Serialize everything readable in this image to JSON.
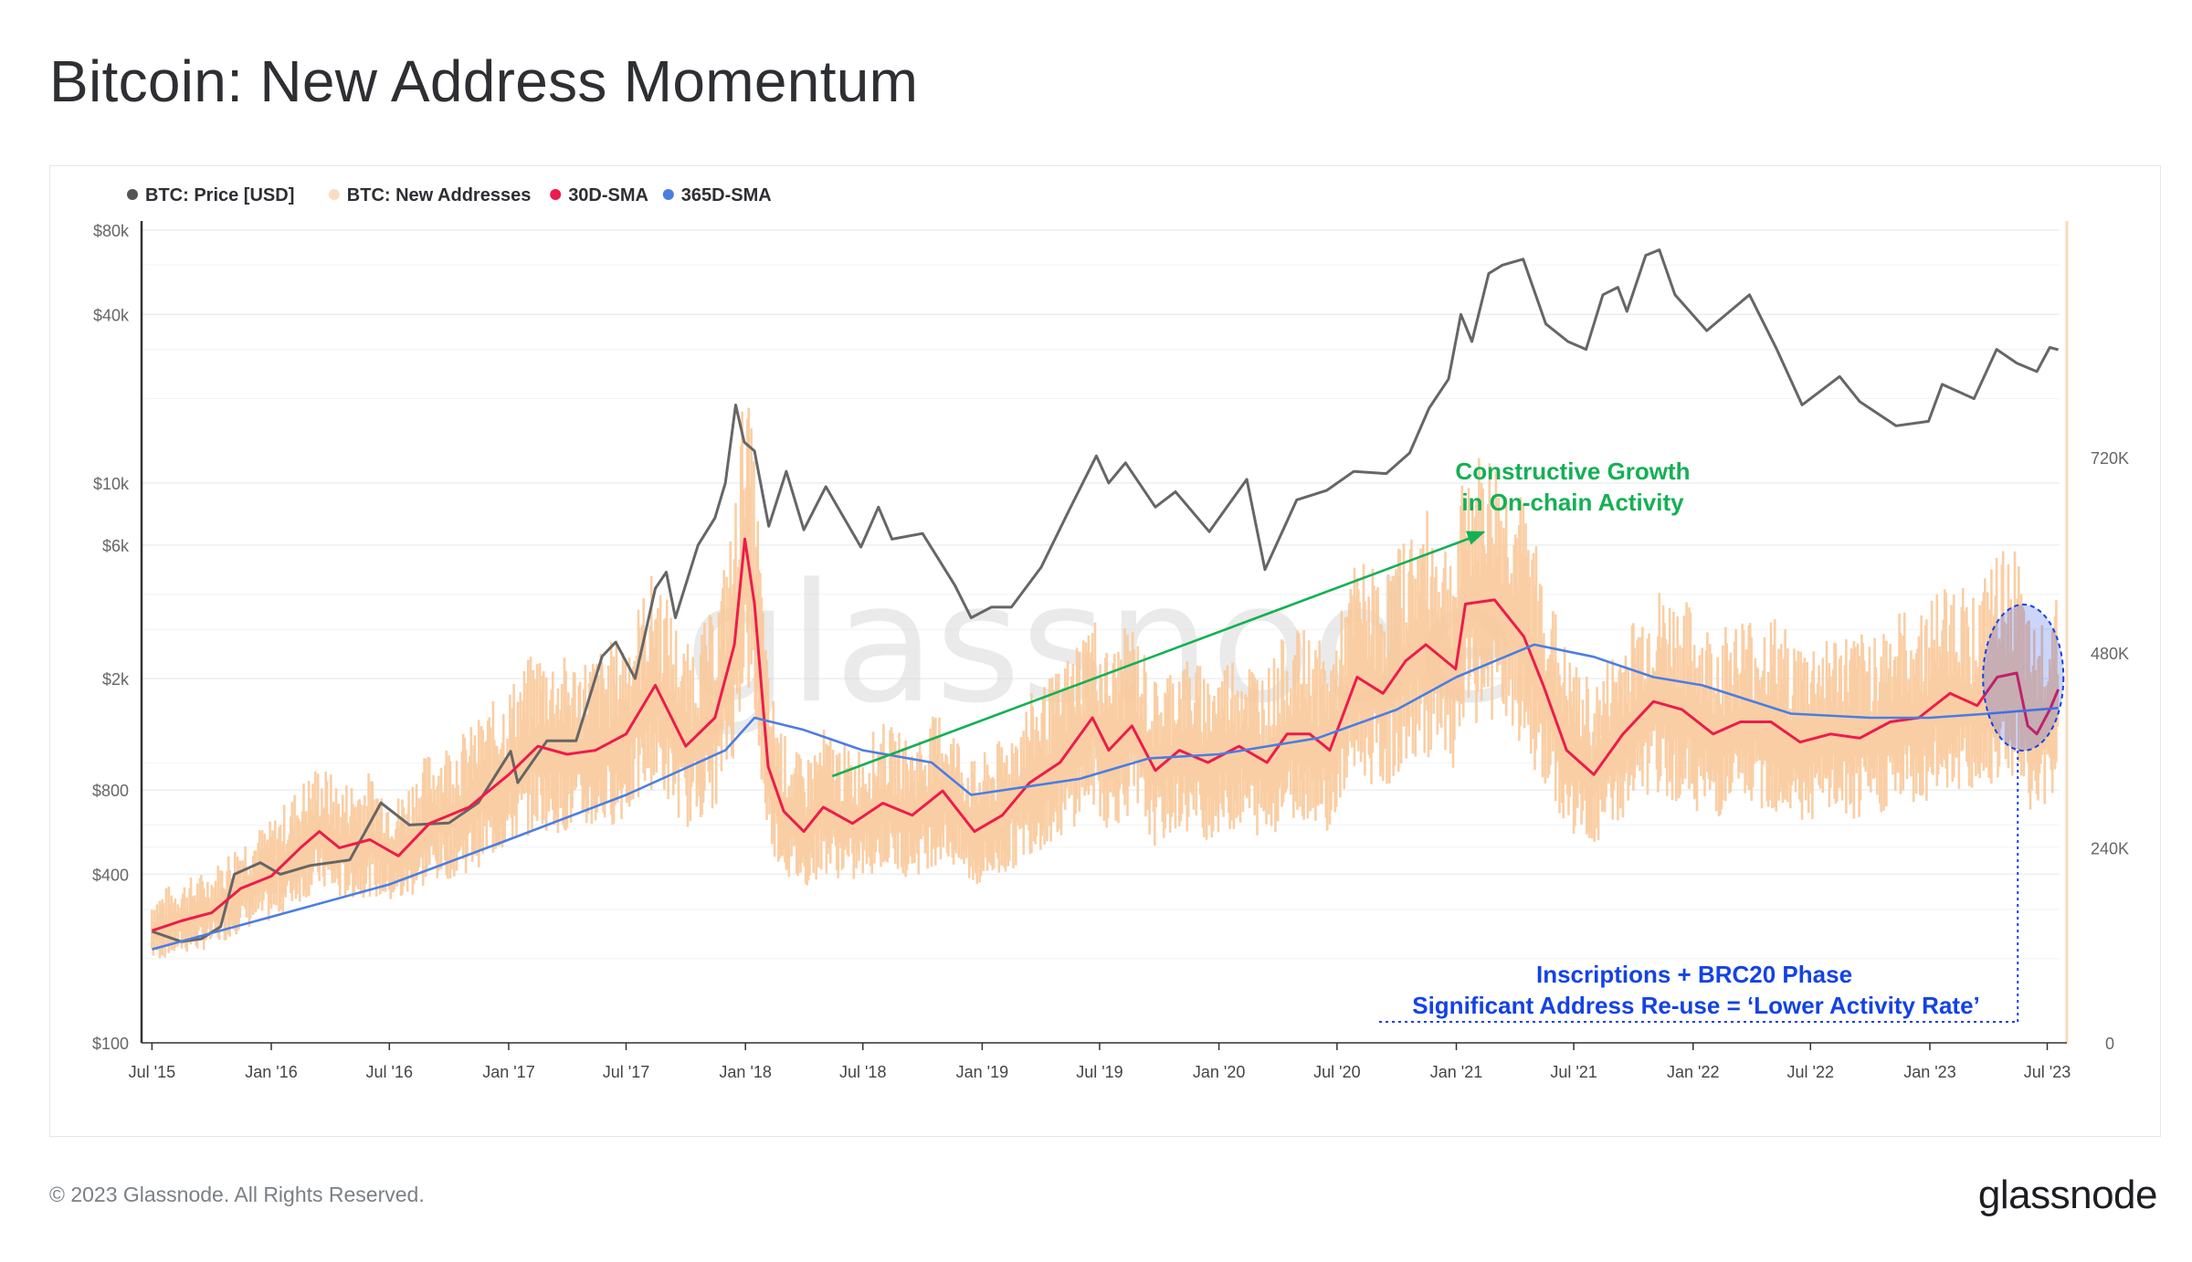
{
  "page": {
    "title": "Bitcoin: New Address Momentum",
    "copyright": "© 2023 Glassnode. All Rights Reserved.",
    "brand": "glassnode",
    "watermark": "glassnode"
  },
  "colors": {
    "price": "#666666",
    "new_addresses": "#f9c99a",
    "sma30": "#ec1c4b",
    "sma365": "#4a7ee3",
    "annotation_green": "#14b055",
    "annotation_blue": "#1442e6"
  },
  "chart_data": {
    "type": "line",
    "legend": [
      {
        "label": "BTC: Price [USD]",
        "color": "#555555"
      },
      {
        "label": "BTC: New Addresses",
        "color": "#fbdcc0"
      },
      {
        "label": "30D-SMA",
        "color": "#ec1c4b"
      },
      {
        "label": "365D-SMA",
        "color": "#4a7ee3"
      }
    ],
    "legend_position": "top-left",
    "x_ticks": [
      "Jul '15",
      "Jan '16",
      "Jul '16",
      "Jan '17",
      "Jul '17",
      "Jan '18",
      "Jul '18",
      "Jan '19",
      "Jul '19",
      "Jan '20",
      "Jul '20",
      "Jan '21",
      "Jul '21",
      "Jan '22",
      "Jul '22",
      "Jan '23",
      "Jul '23"
    ],
    "x_range": [
      "2015-06-15",
      "2023-07-20"
    ],
    "y_left": {
      "scale": "log",
      "ticks": [
        "$80k",
        "$40k",
        "$10k",
        "$6k",
        "$2k",
        "$800",
        "$400",
        "$100"
      ],
      "range": [
        100,
        80000
      ]
    },
    "y_right": {
      "scale": "linear",
      "ticks": [
        "720K",
        "480K",
        "240K",
        "0"
      ],
      "range": [
        0,
        1000000
      ]
    },
    "series": [
      {
        "name": "BTC: Price [USD]",
        "axis": "left",
        "points": [
          [
            "2015-07-01",
            250
          ],
          [
            "2015-08-15",
            230
          ],
          [
            "2015-09-15",
            235
          ],
          [
            "2015-10-15",
            260
          ],
          [
            "2015-11-05",
            400
          ],
          [
            "2015-12-15",
            440
          ],
          [
            "2016-01-15",
            400
          ],
          [
            "2016-03-01",
            430
          ],
          [
            "2016-05-01",
            450
          ],
          [
            "2016-06-18",
            720
          ],
          [
            "2016-08-01",
            600
          ],
          [
            "2016-10-01",
            610
          ],
          [
            "2016-11-15",
            720
          ],
          [
            "2017-01-04",
            1100
          ],
          [
            "2017-01-15",
            850
          ],
          [
            "2017-03-01",
            1200
          ],
          [
            "2017-04-15",
            1200
          ],
          [
            "2017-05-25",
            2400
          ],
          [
            "2017-06-15",
            2700
          ],
          [
            "2017-07-15",
            2000
          ],
          [
            "2017-08-15",
            4200
          ],
          [
            "2017-09-01",
            4800
          ],
          [
            "2017-09-15",
            3300
          ],
          [
            "2017-10-20",
            6000
          ],
          [
            "2017-11-15",
            7500
          ],
          [
            "2017-12-01",
            10000
          ],
          [
            "2017-12-17",
            19000
          ],
          [
            "2017-12-30",
            14000
          ],
          [
            "2018-01-15",
            13000
          ],
          [
            "2018-02-06",
            7000
          ],
          [
            "2018-03-05",
            11000
          ],
          [
            "2018-04-01",
            6800
          ],
          [
            "2018-05-05",
            9700
          ],
          [
            "2018-06-28",
            5900
          ],
          [
            "2018-07-25",
            8200
          ],
          [
            "2018-08-15",
            6300
          ],
          [
            "2018-10-01",
            6600
          ],
          [
            "2018-11-20",
            4300
          ],
          [
            "2018-12-15",
            3300
          ],
          [
            "2019-01-15",
            3600
          ],
          [
            "2019-02-15",
            3600
          ],
          [
            "2019-04-02",
            5000
          ],
          [
            "2019-05-15",
            8000
          ],
          [
            "2019-06-26",
            12500
          ],
          [
            "2019-07-15",
            10000
          ],
          [
            "2019-08-10",
            11800
          ],
          [
            "2019-09-25",
            8200
          ],
          [
            "2019-10-26",
            9300
          ],
          [
            "2019-12-17",
            6700
          ],
          [
            "2020-02-13",
            10300
          ],
          [
            "2020-03-12",
            4900
          ],
          [
            "2020-04-30",
            8700
          ],
          [
            "2020-06-15",
            9400
          ],
          [
            "2020-07-27",
            11000
          ],
          [
            "2020-09-15",
            10800
          ],
          [
            "2020-10-21",
            12800
          ],
          [
            "2020-11-20",
            18500
          ],
          [
            "2020-12-20",
            23500
          ],
          [
            "2021-01-08",
            40000
          ],
          [
            "2021-01-25",
            32000
          ],
          [
            "2021-02-20",
            56000
          ],
          [
            "2021-03-13",
            60000
          ],
          [
            "2021-04-14",
            63000
          ],
          [
            "2021-05-19",
            37000
          ],
          [
            "2021-06-22",
            32000
          ],
          [
            "2021-07-20",
            30000
          ],
          [
            "2021-08-15",
            47000
          ],
          [
            "2021-09-07",
            50000
          ],
          [
            "2021-09-21",
            41000
          ],
          [
            "2021-10-20",
            65000
          ],
          [
            "2021-11-10",
            68000
          ],
          [
            "2021-12-04",
            47000
          ],
          [
            "2022-01-22",
            35000
          ],
          [
            "2022-03-29",
            47000
          ],
          [
            "2022-05-10",
            30000
          ],
          [
            "2022-06-18",
            19000
          ],
          [
            "2022-08-15",
            24000
          ],
          [
            "2022-09-15",
            19500
          ],
          [
            "2022-11-10",
            16000
          ],
          [
            "2022-12-30",
            16600
          ],
          [
            "2023-01-20",
            22500
          ],
          [
            "2023-03-10",
            20000
          ],
          [
            "2023-04-14",
            30000
          ],
          [
            "2023-05-15",
            26800
          ],
          [
            "2023-06-15",
            25000
          ],
          [
            "2023-07-05",
            30500
          ],
          [
            "2023-07-18",
            29900
          ]
        ]
      },
      {
        "name": "30D-SMA",
        "axis": "right",
        "points": [
          [
            "2015-07-01",
            138000
          ],
          [
            "2015-08-15",
            150000
          ],
          [
            "2015-10-01",
            160000
          ],
          [
            "2015-11-15",
            190000
          ],
          [
            "2016-01-01",
            205000
          ],
          [
            "2016-02-15",
            240000
          ],
          [
            "2016-03-15",
            260000
          ],
          [
            "2016-04-15",
            240000
          ],
          [
            "2016-06-01",
            250000
          ],
          [
            "2016-07-15",
            230000
          ],
          [
            "2016-09-01",
            270000
          ],
          [
            "2016-11-01",
            290000
          ],
          [
            "2017-01-01",
            330000
          ],
          [
            "2017-02-15",
            365000
          ],
          [
            "2017-04-01",
            355000
          ],
          [
            "2017-05-15",
            360000
          ],
          [
            "2017-07-01",
            380000
          ],
          [
            "2017-08-15",
            440000
          ],
          [
            "2017-10-01",
            365000
          ],
          [
            "2017-11-15",
            400000
          ],
          [
            "2017-12-15",
            490000
          ],
          [
            "2017-12-31",
            620000
          ],
          [
            "2018-01-15",
            540000
          ],
          [
            "2018-02-05",
            340000
          ],
          [
            "2018-03-01",
            285000
          ],
          [
            "2018-04-01",
            260000
          ],
          [
            "2018-05-01",
            290000
          ],
          [
            "2018-06-15",
            270000
          ],
          [
            "2018-08-01",
            295000
          ],
          [
            "2018-09-15",
            280000
          ],
          [
            "2018-11-01",
            310000
          ],
          [
            "2018-12-20",
            260000
          ],
          [
            "2019-02-01",
            280000
          ],
          [
            "2019-03-15",
            320000
          ],
          [
            "2019-05-01",
            345000
          ],
          [
            "2019-06-20",
            400000
          ],
          [
            "2019-07-15",
            360000
          ],
          [
            "2019-08-20",
            390000
          ],
          [
            "2019-09-25",
            335000
          ],
          [
            "2019-11-01",
            360000
          ],
          [
            "2019-12-15",
            345000
          ],
          [
            "2020-02-01",
            365000
          ],
          [
            "2020-03-15",
            345000
          ],
          [
            "2020-04-15",
            380000
          ],
          [
            "2020-05-20",
            380000
          ],
          [
            "2020-06-20",
            360000
          ],
          [
            "2020-08-01",
            450000
          ],
          [
            "2020-09-10",
            430000
          ],
          [
            "2020-10-15",
            470000
          ],
          [
            "2020-11-15",
            490000
          ],
          [
            "2020-12-31",
            460000
          ],
          [
            "2021-01-15",
            540000
          ],
          [
            "2021-03-01",
            545000
          ],
          [
            "2021-04-15",
            500000
          ],
          [
            "2021-05-15",
            440000
          ],
          [
            "2021-06-20",
            360000
          ],
          [
            "2021-08-01",
            330000
          ],
          [
            "2021-09-15",
            380000
          ],
          [
            "2021-11-01",
            420000
          ],
          [
            "2021-12-15",
            410000
          ],
          [
            "2022-02-01",
            380000
          ],
          [
            "2022-03-15",
            395000
          ],
          [
            "2022-05-01",
            395000
          ],
          [
            "2022-06-15",
            370000
          ],
          [
            "2022-08-01",
            380000
          ],
          [
            "2022-09-15",
            375000
          ],
          [
            "2022-11-01",
            395000
          ],
          [
            "2022-12-15",
            400000
          ],
          [
            "2023-02-01",
            430000
          ],
          [
            "2023-03-15",
            415000
          ],
          [
            "2023-04-15",
            450000
          ],
          [
            "2023-05-15",
            455000
          ],
          [
            "2023-06-01",
            390000
          ],
          [
            "2023-06-15",
            380000
          ],
          [
            "2023-07-05",
            410000
          ],
          [
            "2023-07-18",
            435000
          ]
        ]
      },
      {
        "name": "365D-SMA",
        "axis": "right",
        "points": [
          [
            "2015-07-01",
            115000
          ],
          [
            "2016-01-01",
            155000
          ],
          [
            "2016-07-01",
            195000
          ],
          [
            "2017-01-01",
            250000
          ],
          [
            "2017-07-01",
            305000
          ],
          [
            "2017-12-01",
            360000
          ],
          [
            "2018-01-15",
            400000
          ],
          [
            "2018-04-01",
            385000
          ],
          [
            "2018-07-01",
            360000
          ],
          [
            "2018-10-15",
            345000
          ],
          [
            "2018-12-15",
            305000
          ],
          [
            "2019-06-01",
            325000
          ],
          [
            "2019-09-15",
            350000
          ],
          [
            "2020-01-01",
            355000
          ],
          [
            "2020-06-01",
            375000
          ],
          [
            "2020-10-01",
            410000
          ],
          [
            "2021-01-01",
            450000
          ],
          [
            "2021-05-01",
            490000
          ],
          [
            "2021-08-01",
            475000
          ],
          [
            "2021-11-01",
            450000
          ],
          [
            "2022-01-15",
            440000
          ],
          [
            "2022-06-01",
            405000
          ],
          [
            "2022-10-01",
            400000
          ],
          [
            "2023-01-01",
            400000
          ],
          [
            "2023-04-01",
            405000
          ],
          [
            "2023-07-18",
            412000
          ]
        ]
      }
    ],
    "annotations": [
      {
        "text": "Constructive Growth",
        "line2": "in On-chain Activity",
        "color": "#14b055"
      },
      {
        "text": "Inscriptions + BRC20 Phase",
        "line2": "Significant Address Re-use = ‘Lower Activity Rate’",
        "color": "#1442e6"
      }
    ]
  }
}
